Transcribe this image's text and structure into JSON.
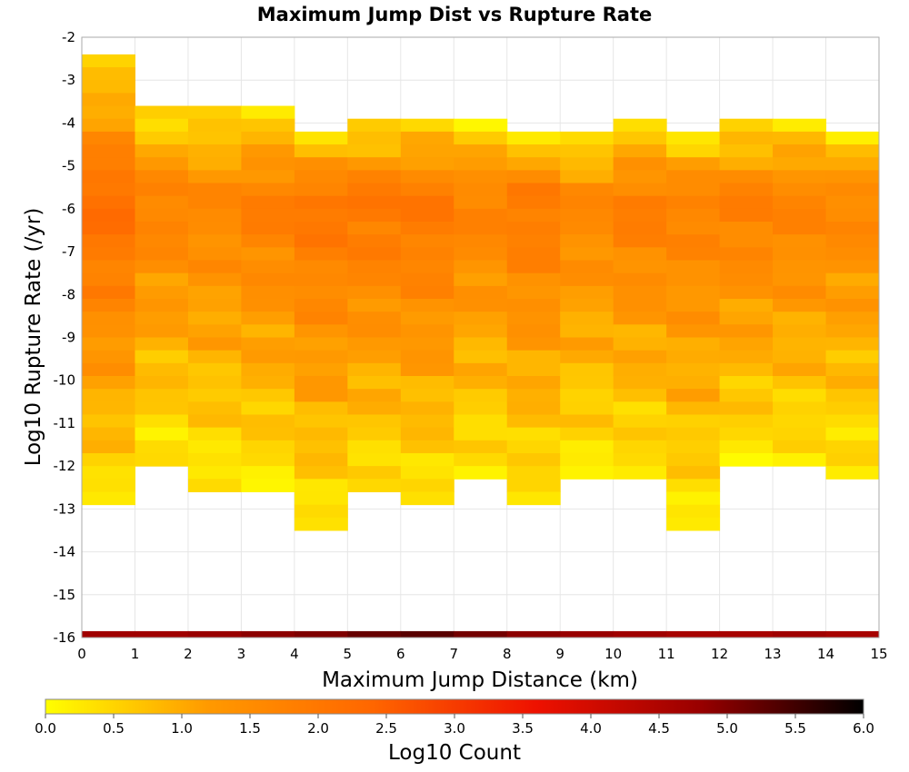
{
  "chart_data": {
    "type": "heatmap",
    "title": "Maximum Jump Dist vs Rupture Rate",
    "xlabel": "Maximum Jump Distance (km)",
    "ylabel": "Log10 Rupture Rate (/yr)",
    "xlim": [
      0,
      15
    ],
    "ylim": [
      -16,
      -2
    ],
    "x_ticks": [
      "0",
      "1",
      "2",
      "3",
      "4",
      "5",
      "6",
      "7",
      "8",
      "9",
      "10",
      "11",
      "12",
      "13",
      "14",
      "15"
    ],
    "y_ticks": [
      "-2",
      "-3",
      "-4",
      "-5",
      "-6",
      "-7",
      "-8",
      "-9",
      "-10",
      "-11",
      "-12",
      "-13",
      "-14",
      "-15",
      "-16"
    ],
    "grid": true,
    "colorbar": {
      "label": "Log10 Count",
      "range": [
        0.0,
        6.0
      ],
      "ticks": [
        "0.0",
        "0.5",
        "1.0",
        "1.5",
        "2.0",
        "2.5",
        "3.0",
        "3.5",
        "4.0",
        "4.5",
        "5.0",
        "5.5",
        "6.0"
      ],
      "colors": [
        "#ffff00",
        "#ff9900",
        "#ff6600",
        "#ee1100",
        "#990000",
        "#000000"
      ]
    },
    "x_bin_width": 1,
    "y_bin_height": 0.3,
    "column_ranges": [
      {
        "x": 0.5,
        "y_min": -12.7,
        "y_max": -2.4
      },
      {
        "x": 1.5,
        "y_min": -11.8,
        "y_max": -3.6
      },
      {
        "x": 2.5,
        "y_min": -12.4,
        "y_max": -3.6
      },
      {
        "x": 3.5,
        "y_min": -12.4,
        "y_max": -3.6
      },
      {
        "x": 4.5,
        "y_min": -13.3,
        "y_max": -4.2
      },
      {
        "x": 5.5,
        "y_min": -12.4,
        "y_max": -3.9
      },
      {
        "x": 6.5,
        "y_min": -12.7,
        "y_max": -3.9
      },
      {
        "x": 7.5,
        "y_min": -12.1,
        "y_max": -3.9
      },
      {
        "x": 8.5,
        "y_min": -12.7,
        "y_max": -4.2
      },
      {
        "x": 9.5,
        "y_min": -12.1,
        "y_max": -4.2
      },
      {
        "x": 10.5,
        "y_min": -12.1,
        "y_max": -3.9
      },
      {
        "x": 11.5,
        "y_min": -13.3,
        "y_max": -4.2
      },
      {
        "x": 12.5,
        "y_min": -11.8,
        "y_max": -3.9
      },
      {
        "x": 13.5,
        "y_min": -11.8,
        "y_max": -3.9
      },
      {
        "x": 14.5,
        "y_min": -12.1,
        "y_max": -4.2
      }
    ],
    "peak_log10_count": [
      2.3,
      1.8,
      1.7,
      1.9,
      2.1,
      2.1,
      2.1,
      1.8,
      2.0,
      1.7,
      1.9,
      1.8,
      1.9,
      1.8,
      1.7
    ],
    "bottom_row": {
      "y_min": -16,
      "y_max": -15.85,
      "log10_count": [
        4.7,
        4.7,
        4.8,
        4.9,
        5.0,
        5.2,
        5.3,
        5.1,
        4.9,
        4.8,
        4.7,
        4.6,
        4.6,
        4.7,
        4.6
      ]
    }
  }
}
